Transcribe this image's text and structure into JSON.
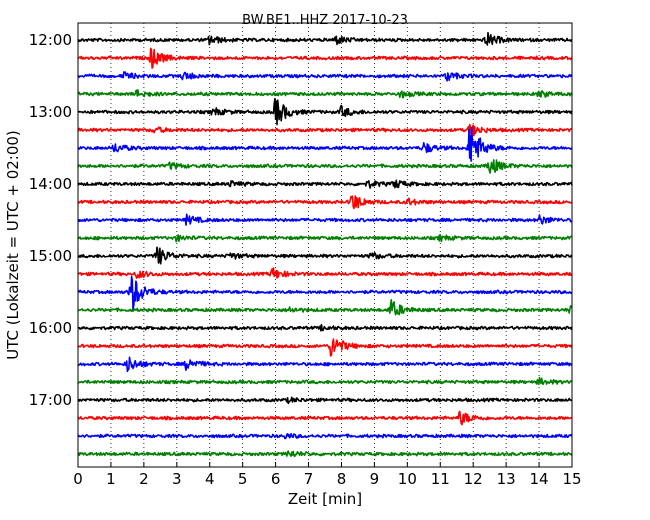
{
  "chart_data": {
    "type": "line",
    "title": "BW.BE1..HHZ 2017-10-23",
    "xlabel": "Zeit  [min]",
    "ylabel": "UTC (Lokalzeit = UTC + 02:00)",
    "xlim": [
      0,
      15
    ],
    "x_ticks": [
      "0",
      "1",
      "2",
      "3",
      "4",
      "5",
      "6",
      "7",
      "8",
      "9",
      "10",
      "11",
      "12",
      "13",
      "14",
      "15"
    ],
    "y_ticks": [
      "12:00",
      "13:00",
      "14:00",
      "15:00",
      "16:00",
      "17:00"
    ],
    "grid": "dotted",
    "trace_colors": [
      "#000000",
      "#ff0000",
      "#0000ff",
      "#008000"
    ],
    "traces": [
      {
        "start": "12:00",
        "events": [
          {
            "t": 4.0,
            "a": 0.35
          },
          {
            "t": 7.8,
            "a": 0.35
          },
          {
            "t": 12.4,
            "a": 0.55
          }
        ]
      },
      {
        "start": "12:15",
        "events": [
          {
            "t": 2.2,
            "a": 0.85
          }
        ]
      },
      {
        "start": "12:30",
        "events": [
          {
            "t": 1.4,
            "a": 0.25
          },
          {
            "t": 3.2,
            "a": 0.3
          },
          {
            "t": 11.2,
            "a": 0.35
          }
        ]
      },
      {
        "start": "12:45",
        "events": [
          {
            "t": 1.8,
            "a": 0.3
          },
          {
            "t": 9.8,
            "a": 0.25
          },
          {
            "t": 14.0,
            "a": 0.25
          }
        ]
      },
      {
        "start": "13:00",
        "events": [
          {
            "t": 4.1,
            "a": 0.3
          },
          {
            "t": 6.0,
            "a": 1.15
          },
          {
            "t": 8.0,
            "a": 0.4
          }
        ]
      },
      {
        "start": "13:15",
        "events": [
          {
            "t": 2.3,
            "a": 0.2
          },
          {
            "t": 11.9,
            "a": 0.5
          }
        ]
      },
      {
        "start": "13:30",
        "events": [
          {
            "t": 1.1,
            "a": 0.35
          },
          {
            "t": 10.5,
            "a": 0.4
          },
          {
            "t": 11.9,
            "a": 2.0
          }
        ]
      },
      {
        "start": "13:45",
        "events": [
          {
            "t": 2.8,
            "a": 0.25
          },
          {
            "t": 12.5,
            "a": 0.7
          }
        ]
      },
      {
        "start": "14:00",
        "events": [
          {
            "t": 4.6,
            "a": 0.2
          },
          {
            "t": 8.8,
            "a": 0.25
          },
          {
            "t": 9.6,
            "a": 0.3
          }
        ]
      },
      {
        "start": "14:15",
        "events": [
          {
            "t": 8.3,
            "a": 0.75
          },
          {
            "t": 10.0,
            "a": 0.25
          }
        ]
      },
      {
        "start": "14:30",
        "events": [
          {
            "t": 3.3,
            "a": 0.35
          },
          {
            "t": 14.0,
            "a": 0.35
          }
        ]
      },
      {
        "start": "14:45",
        "events": [
          {
            "t": 3.0,
            "a": 0.2
          },
          {
            "t": 11.0,
            "a": 0.2
          }
        ]
      },
      {
        "start": "15:00",
        "events": [
          {
            "t": 2.4,
            "a": 0.75
          },
          {
            "t": 4.6,
            "a": 0.25
          },
          {
            "t": 8.9,
            "a": 0.25
          }
        ]
      },
      {
        "start": "15:15",
        "events": [
          {
            "t": 1.8,
            "a": 0.3
          },
          {
            "t": 5.9,
            "a": 0.45
          }
        ]
      },
      {
        "start": "15:30",
        "events": [
          {
            "t": 1.6,
            "a": 1.6
          }
        ]
      },
      {
        "start": "15:45",
        "events": [
          {
            "t": 6.4,
            "a": 0.2
          },
          {
            "t": 9.5,
            "a": 0.75
          },
          {
            "t": 14.9,
            "a": 0.25
          }
        ]
      },
      {
        "start": "16:00",
        "events": [
          {
            "t": 7.4,
            "a": 0.15
          }
        ]
      },
      {
        "start": "16:15",
        "events": [
          {
            "t": 7.7,
            "a": 0.95
          }
        ]
      },
      {
        "start": "16:30",
        "events": [
          {
            "t": 1.5,
            "a": 0.6
          },
          {
            "t": 3.3,
            "a": 0.45
          }
        ]
      },
      {
        "start": "16:45",
        "events": [
          {
            "t": 14.0,
            "a": 0.25
          }
        ]
      },
      {
        "start": "17:00",
        "events": [
          {
            "t": 6.4,
            "a": 0.15
          }
        ]
      },
      {
        "start": "17:15",
        "events": [
          {
            "t": 11.6,
            "a": 0.55
          }
        ]
      },
      {
        "start": "17:30",
        "events": [
          {
            "t": 6.3,
            "a": 0.15
          }
        ]
      },
      {
        "start": "17:45",
        "events": [
          {
            "t": 6.4,
            "a": 0.25
          }
        ]
      }
    ]
  }
}
